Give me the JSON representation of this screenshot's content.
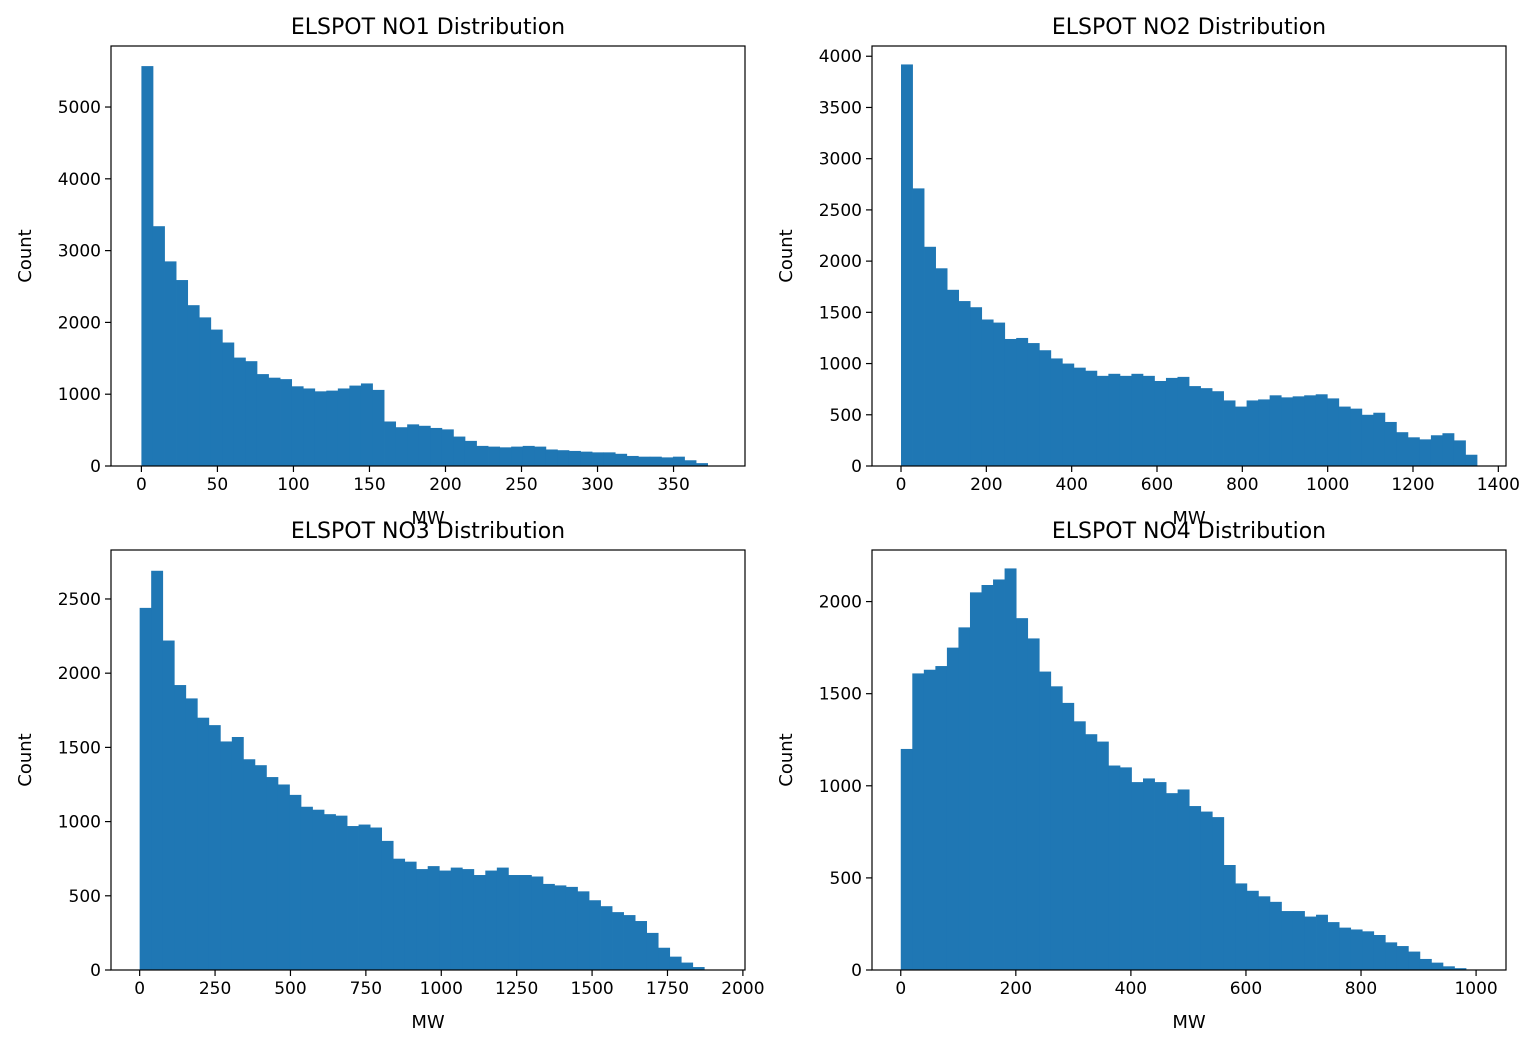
{
  "chart_data": [
    {
      "type": "bar",
      "title": "ELSPOT NO1 Distribution",
      "xlabel": "MW",
      "ylabel": "Count",
      "bar_color": "#1f77b4",
      "xlim": [
        -20,
        397
      ],
      "ylim": [
        0,
        5850
      ],
      "xticks": [
        0,
        50,
        100,
        150,
        200,
        250,
        300,
        350
      ],
      "yticks": [
        0,
        1000,
        2000,
        3000,
        4000,
        5000
      ],
      "bin_start": 0,
      "bin_width": 7.6,
      "values": [
        5570,
        3340,
        2850,
        2590,
        2240,
        2070,
        1900,
        1720,
        1510,
        1460,
        1280,
        1230,
        1210,
        1110,
        1080,
        1040,
        1050,
        1080,
        1120,
        1150,
        1060,
        620,
        540,
        580,
        560,
        530,
        510,
        410,
        350,
        280,
        270,
        260,
        270,
        280,
        270,
        230,
        220,
        210,
        200,
        190,
        190,
        170,
        140,
        130,
        130,
        120,
        130,
        80,
        40,
        0
      ]
    },
    {
      "type": "bar",
      "title": "ELSPOT NO2 Distribution",
      "xlabel": "MW",
      "ylabel": "Count",
      "bar_color": "#1f77b4",
      "xlim": [
        -68,
        1418
      ],
      "ylim": [
        0,
        4100
      ],
      "xticks": [
        0,
        200,
        400,
        600,
        800,
        1000,
        1200,
        1400
      ],
      "yticks": [
        0,
        500,
        1000,
        1500,
        2000,
        2500,
        3000,
        3500,
        4000
      ],
      "bin_start": 0,
      "bin_width": 27,
      "values": [
        3920,
        2710,
        2140,
        1930,
        1720,
        1610,
        1550,
        1430,
        1400,
        1240,
        1250,
        1200,
        1130,
        1050,
        1000,
        960,
        930,
        880,
        900,
        880,
        900,
        880,
        830,
        860,
        870,
        780,
        760,
        730,
        640,
        580,
        640,
        650,
        690,
        670,
        680,
        690,
        700,
        660,
        580,
        560,
        500,
        520,
        430,
        330,
        280,
        260,
        300,
        320,
        250,
        110
      ]
    },
    {
      "type": "bar",
      "title": "ELSPOT NO3 Distribution",
      "xlabel": "MW",
      "ylabel": "Count",
      "bar_color": "#1f77b4",
      "xlim": [
        -95,
        2007
      ],
      "ylim": [
        0,
        2830
      ],
      "xticks": [
        0,
        250,
        500,
        750,
        1000,
        1250,
        1500,
        1750,
        2000
      ],
      "yticks": [
        0,
        500,
        1000,
        1500,
        2000,
        2500
      ],
      "bin_start": 0,
      "bin_width": 38.2,
      "values": [
        2440,
        2690,
        2220,
        1920,
        1830,
        1700,
        1650,
        1540,
        1570,
        1420,
        1380,
        1300,
        1250,
        1180,
        1100,
        1080,
        1050,
        1040,
        970,
        980,
        960,
        870,
        750,
        730,
        680,
        700,
        670,
        690,
        680,
        640,
        670,
        690,
        640,
        640,
        630,
        580,
        570,
        560,
        530,
        470,
        430,
        390,
        370,
        330,
        250,
        150,
        90,
        50,
        20,
        0
      ]
    },
    {
      "type": "bar",
      "title": "ELSPOT NO4 Distribution",
      "xlabel": "MW",
      "ylabel": "Count",
      "bar_color": "#1f77b4",
      "xlim": [
        -50,
        1052
      ],
      "ylim": [
        0,
        2280
      ],
      "xticks": [
        0,
        200,
        400,
        600,
        800,
        1000
      ],
      "yticks": [
        0,
        500,
        1000,
        1500,
        2000
      ],
      "bin_start": 0,
      "bin_width": 20.05,
      "values": [
        1200,
        1610,
        1630,
        1650,
        1750,
        1860,
        2050,
        2090,
        2120,
        2180,
        1910,
        1800,
        1620,
        1540,
        1450,
        1350,
        1280,
        1240,
        1110,
        1100,
        1020,
        1040,
        1020,
        960,
        980,
        890,
        860,
        830,
        570,
        470,
        430,
        400,
        370,
        320,
        320,
        290,
        300,
        260,
        230,
        220,
        210,
        190,
        150,
        130,
        100,
        60,
        40,
        20,
        10,
        0
      ]
    }
  ]
}
